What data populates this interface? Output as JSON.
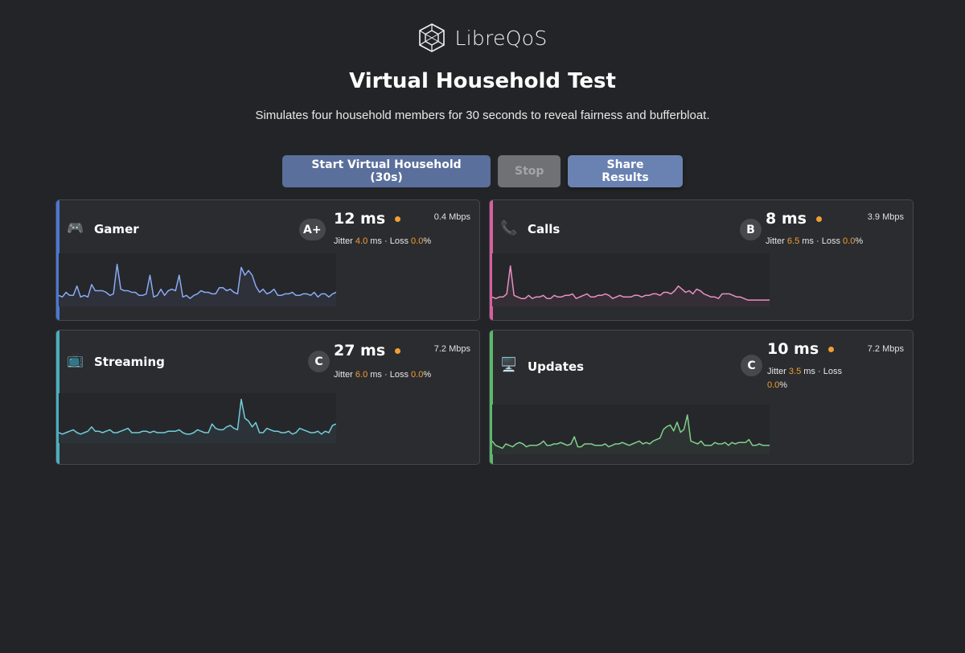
{
  "logo": {
    "text": "LibreQoS"
  },
  "header": {
    "title": "Virtual Household Test",
    "subtitle": "Simulates four household members for 30 seconds to reveal fairness and bufferbloat."
  },
  "controls": {
    "start_label": "Start Virtual Household (30s)",
    "stop_label": "Stop",
    "share_label": "Share Results"
  },
  "stats_labels": {
    "jitter": "Jitter",
    "ms": "ms",
    "sep": "·",
    "loss": "Loss",
    "pct": "%"
  },
  "colors": {
    "gamer": "#4a78d4",
    "calls": "#d85fa0",
    "streaming": "#4aaebf",
    "updates": "#5cb86c",
    "warn": "#f0a030"
  },
  "cards": {
    "gamer": {
      "icon": "game-controller-icon",
      "name": "Gamer",
      "grade": "A+",
      "latency": "12 ms",
      "mbps": "0.4 Mbps",
      "jitter": "4.0",
      "loss": "0.0",
      "series": [
        5,
        4,
        7,
        5,
        5,
        11,
        4,
        5,
        4,
        12,
        8,
        8,
        8,
        7,
        5,
        6,
        25,
        9,
        8,
        8,
        7,
        7,
        5,
        5,
        6,
        18,
        4,
        5,
        9,
        5,
        8,
        9,
        8,
        18,
        4,
        5,
        3,
        5,
        6,
        8,
        7,
        7,
        6,
        6,
        10,
        10,
        8,
        9,
        7,
        6,
        23,
        18,
        21,
        18,
        11,
        7,
        9,
        6,
        7,
        9,
        5,
        5,
        6,
        6,
        7,
        5,
        5,
        6,
        6,
        5,
        7,
        4,
        6,
        6,
        4,
        6,
        7
      ]
    },
    "calls": {
      "icon": "phone-icon",
      "name": "Calls",
      "grade": "B",
      "latency": "8 ms",
      "mbps": "3.9 Mbps",
      "jitter": "6.5",
      "loss": "0.0",
      "series": [
        4,
        3,
        4,
        4,
        6,
        24,
        5,
        4,
        3,
        3,
        5,
        3,
        4,
        4,
        5,
        3,
        3,
        5,
        4,
        4,
        5,
        5,
        6,
        3,
        4,
        5,
        6,
        4,
        4,
        5,
        5,
        6,
        5,
        3,
        4,
        5,
        4,
        4,
        4,
        5,
        5,
        4,
        5,
        5,
        6,
        6,
        5,
        7,
        7,
        6,
        8,
        11,
        9,
        7,
        8,
        6,
        9,
        8,
        6,
        5,
        4,
        4,
        3,
        6,
        6,
        6,
        5,
        4,
        4,
        3,
        2,
        2,
        2,
        2,
        2,
        2,
        2
      ]
    },
    "streaming": {
      "icon": "tv-icon",
      "name": "Streaming",
      "grade": "C",
      "latency": "27 ms",
      "mbps": "7.2 Mbps",
      "jitter": "6.0",
      "loss": "0.0",
      "series": [
        5,
        4,
        5,
        6,
        7,
        5,
        4,
        5,
        6,
        9,
        6,
        6,
        5,
        6,
        7,
        5,
        5,
        6,
        7,
        8,
        5,
        5,
        5,
        6,
        6,
        5,
        6,
        5,
        5,
        5,
        6,
        6,
        6,
        7,
        5,
        4,
        4,
        5,
        7,
        6,
        5,
        5,
        11,
        8,
        7,
        7,
        9,
        10,
        8,
        7,
        28,
        15,
        13,
        9,
        12,
        5,
        5,
        8,
        7,
        6,
        6,
        5,
        5,
        6,
        4,
        5,
        8,
        7,
        6,
        5,
        5,
        6,
        4,
        6,
        5,
        10,
        11
      ]
    },
    "updates": {
      "icon": "monitor-icon",
      "name": "Updates",
      "grade": "C",
      "latency": "10 ms",
      "mbps": "7.2 Mbps",
      "jitter": "3.5",
      "loss": "0.0",
      "series": [
        7,
        4,
        3,
        2,
        5,
        4,
        3,
        5,
        6,
        5,
        3,
        4,
        4,
        4,
        5,
        7,
        4,
        4,
        5,
        5,
        6,
        5,
        4,
        5,
        10,
        3,
        3,
        5,
        5,
        5,
        4,
        4,
        4,
        5,
        3,
        4,
        5,
        5,
        6,
        5,
        4,
        5,
        6,
        7,
        5,
        6,
        5,
        7,
        8,
        9,
        15,
        17,
        18,
        14,
        20,
        13,
        15,
        25,
        7,
        6,
        5,
        7,
        4,
        4,
        4,
        6,
        5,
        5,
        6,
        4,
        6,
        5,
        6,
        6,
        6,
        8,
        4,
        4,
        5,
        4,
        4,
        4
      ]
    }
  }
}
